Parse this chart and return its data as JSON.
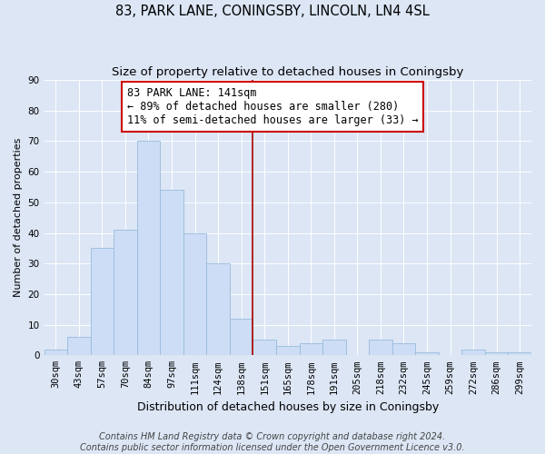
{
  "title": "83, PARK LANE, CONINGSBY, LINCOLN, LN4 4SL",
  "subtitle": "Size of property relative to detached houses in Coningsby",
  "xlabel": "Distribution of detached houses by size in Coningsby",
  "ylabel": "Number of detached properties",
  "categories": [
    "30sqm",
    "43sqm",
    "57sqm",
    "70sqm",
    "84sqm",
    "97sqm",
    "111sqm",
    "124sqm",
    "138sqm",
    "151sqm",
    "165sqm",
    "178sqm",
    "191sqm",
    "205sqm",
    "218sqm",
    "232sqm",
    "245sqm",
    "259sqm",
    "272sqm",
    "286sqm",
    "299sqm"
  ],
  "values": [
    2,
    6,
    35,
    41,
    70,
    54,
    40,
    30,
    12,
    5,
    3,
    4,
    5,
    0,
    5,
    4,
    1,
    0,
    2,
    1,
    1
  ],
  "bar_color": "#ccddf5",
  "bar_edge_color": "#99bbdd",
  "vline_color": "#aa0000",
  "annotation_text": "83 PARK LANE: 141sqm\n← 89% of detached houses are smaller (280)\n11% of semi-detached houses are larger (33) →",
  "annotation_box_facecolor": "#ffffff",
  "annotation_box_edgecolor": "#cc0000",
  "ylim": [
    0,
    90
  ],
  "yticks": [
    0,
    10,
    20,
    30,
    40,
    50,
    60,
    70,
    80,
    90
  ],
  "footer_line1": "Contains HM Land Registry data © Crown copyright and database right 2024.",
  "footer_line2": "Contains public sector information licensed under the Open Government Licence v3.0.",
  "fig_facecolor": "#dce6f5",
  "plot_facecolor": "#dce6f5",
  "title_fontsize": 10.5,
  "subtitle_fontsize": 9.5,
  "xlabel_fontsize": 9,
  "ylabel_fontsize": 8,
  "tick_fontsize": 7.5,
  "footer_fontsize": 7,
  "annotation_fontsize": 8.5,
  "grid_color": "#ffffff",
  "vline_index": 8
}
